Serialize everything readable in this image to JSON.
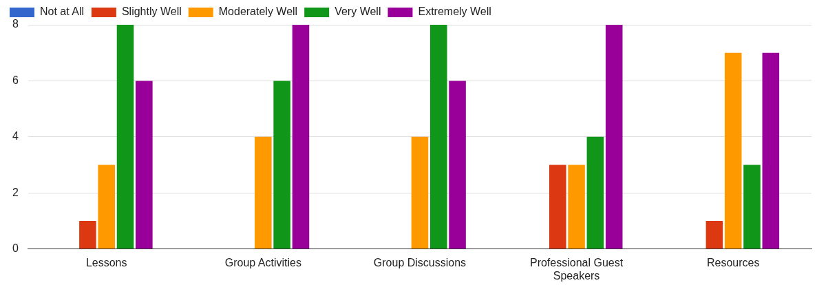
{
  "chart_data": {
    "type": "bar",
    "categories": [
      "Lessons",
      "Group Activities",
      "Group Discussions",
      "Professional Guest Speakers",
      "Resources"
    ],
    "series": [
      {
        "name": "Not at All",
        "color": "#3366cc",
        "values": [
          0,
          0,
          0,
          0,
          0
        ]
      },
      {
        "name": "Slightly Well",
        "color": "#dc3912",
        "values": [
          1,
          0,
          0,
          3,
          1
        ]
      },
      {
        "name": "Moderately Well",
        "color": "#ff9900",
        "values": [
          3,
          4,
          4,
          3,
          7
        ]
      },
      {
        "name": "Very Well",
        "color": "#109618",
        "values": [
          8,
          6,
          8,
          4,
          3
        ]
      },
      {
        "name": "Extremely Well",
        "color": "#990099",
        "values": [
          6,
          8,
          6,
          8,
          7
        ]
      }
    ],
    "ylim": [
      0,
      8
    ],
    "yticks": [
      0,
      2,
      4,
      6,
      8
    ],
    "grid": "y",
    "legend": "top left"
  }
}
